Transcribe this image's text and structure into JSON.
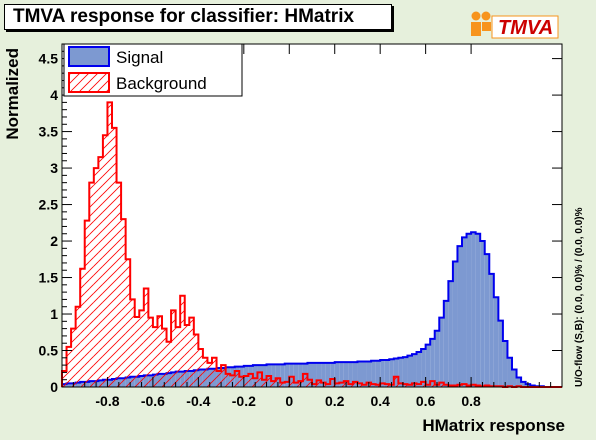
{
  "title": "TMVA response for classifier: HMatrix",
  "logo_text": "TMVA",
  "overflow_note": "U/O-flow (S,B): (0.0, 0.0)% / (0.0, 0.0)%",
  "colors": {
    "frame_bg": "#e6f0dc",
    "signal_fill": "#7d99d1",
    "signal_line": "#0000ee",
    "background_line": "#ff0000",
    "logo_orange": "#f7941d"
  },
  "chart_data": {
    "type": "histogram",
    "xlabel": "HMatrix response",
    "ylabel": "Normalized",
    "xlim": [
      -1.0,
      1.2
    ],
    "ylim": [
      0,
      4.7
    ],
    "x_ticks": [
      -0.8,
      -0.6,
      -0.4,
      -0.2,
      0,
      0.2,
      0.4,
      0.6,
      0.8
    ],
    "x_tick_labels": [
      "-0.8",
      "-0.6",
      "-0.4",
      "-0.2",
      "0",
      "0.2",
      "0.4",
      "0.6",
      "0.8"
    ],
    "y_ticks": [
      0,
      0.5,
      1,
      1.5,
      2,
      2.5,
      3,
      3.5,
      4,
      4.5
    ],
    "y_tick_labels": [
      "0",
      "0.5",
      "1",
      "1.5",
      "2",
      "2.5",
      "3",
      "3.5",
      "4",
      "4.5"
    ],
    "legend_position": "top-left",
    "bin_start": -0.99,
    "bin_width": 0.02,
    "series": [
      {
        "name": "Signal",
        "style": "filled",
        "values": [
          0.04,
          0.05,
          0.05,
          0.06,
          0.07,
          0.07,
          0.08,
          0.08,
          0.09,
          0.1,
          0.1,
          0.11,
          0.12,
          0.12,
          0.13,
          0.14,
          0.14,
          0.15,
          0.16,
          0.16,
          0.17,
          0.18,
          0.18,
          0.19,
          0.2,
          0.21,
          0.21,
          0.22,
          0.22,
          0.23,
          0.24,
          0.24,
          0.25,
          0.25,
          0.26,
          0.26,
          0.27,
          0.27,
          0.28,
          0.28,
          0.29,
          0.29,
          0.3,
          0.3,
          0.3,
          0.31,
          0.31,
          0.31,
          0.31,
          0.32,
          0.32,
          0.32,
          0.32,
          0.32,
          0.33,
          0.33,
          0.33,
          0.33,
          0.33,
          0.33,
          0.34,
          0.34,
          0.34,
          0.34,
          0.34,
          0.35,
          0.35,
          0.35,
          0.36,
          0.36,
          0.37,
          0.37,
          0.38,
          0.39,
          0.4,
          0.41,
          0.43,
          0.45,
          0.48,
          0.52,
          0.58,
          0.66,
          0.77,
          0.95,
          1.18,
          1.45,
          1.72,
          1.93,
          2.05,
          2.1,
          2.12,
          2.1,
          2.0,
          1.82,
          1.55,
          1.23,
          0.91,
          0.63,
          0.4,
          0.24,
          0.13,
          0.07,
          0.04,
          0.02,
          0.01,
          0.01,
          0.0,
          0.0,
          0.0,
          0.0
        ]
      },
      {
        "name": "Background",
        "style": "hatched",
        "values": [
          0.22,
          0.55,
          0.8,
          1.1,
          1.62,
          2.28,
          2.8,
          3.0,
          3.15,
          3.45,
          3.9,
          3.55,
          2.8,
          2.3,
          1.75,
          1.2,
          0.96,
          1.05,
          1.35,
          0.95,
          0.82,
          0.97,
          0.8,
          0.62,
          1.05,
          0.82,
          1.25,
          0.85,
          0.95,
          0.72,
          0.52,
          0.4,
          0.33,
          0.4,
          0.22,
          0.3,
          0.18,
          0.16,
          0.22,
          0.14,
          0.15,
          0.18,
          0.12,
          0.2,
          0.1,
          0.15,
          0.08,
          0.12,
          0.06,
          0.07,
          0.14,
          0.06,
          0.08,
          0.18,
          0.1,
          0.04,
          0.09,
          0.06,
          0.04,
          0.11,
          0.05,
          0.06,
          0.08,
          0.04,
          0.07,
          0.05,
          0.03,
          0.06,
          0.04,
          0.03,
          0.05,
          0.04,
          0.03,
          0.14,
          0.05,
          0.04,
          0.03,
          0.05,
          0.04,
          0.07,
          0.03,
          0.08,
          0.03,
          0.06,
          0.03,
          0.02,
          0.02,
          0.03,
          0.04,
          0.02,
          0.03,
          0.02,
          0.01,
          0.02,
          0.01,
          0.01,
          0.01,
          0.0,
          0.01,
          0.0,
          0.01,
          0.0,
          0.0,
          0.0,
          0.0,
          0.0,
          0.0,
          0.0,
          0.0,
          0.0
        ]
      }
    ]
  }
}
